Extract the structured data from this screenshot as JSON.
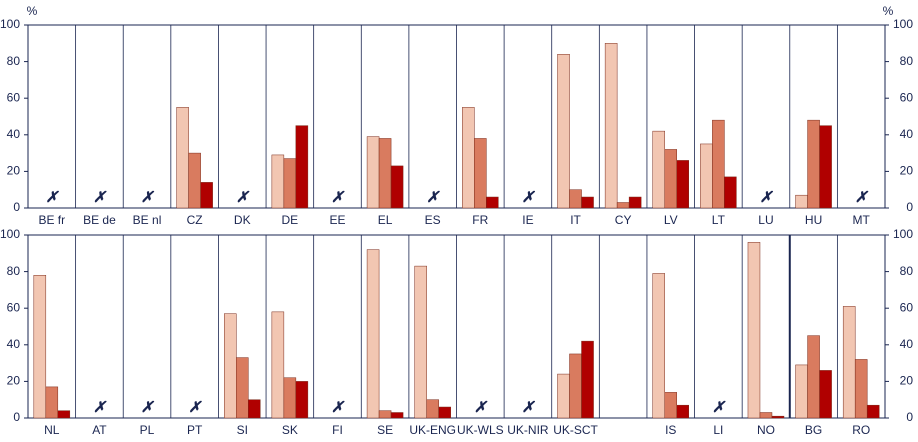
{
  "chart_data": [
    {
      "type": "bar",
      "y_label": "%",
      "missing_marker": "✗",
      "categories": [
        "BE fr",
        "BE de",
        "BE nl",
        "CZ",
        "DK",
        "DE",
        "EE",
        "EL",
        "ES",
        "FR",
        "IE",
        "IT",
        "CY",
        "LV",
        "LT",
        "LU",
        "HU",
        "MT"
      ],
      "series": [
        {
          "color": "#f2c6b2",
          "values": [
            null,
            null,
            null,
            55,
            null,
            29,
            null,
            39,
            null,
            55,
            null,
            84,
            90,
            42,
            35,
            null,
            7,
            null
          ]
        },
        {
          "color": "#d97b5f",
          "values": [
            null,
            null,
            null,
            30,
            null,
            27,
            null,
            38,
            null,
            38,
            null,
            10,
            3,
            32,
            48,
            null,
            48,
            null
          ]
        },
        {
          "color": "#b00000",
          "values": [
            null,
            null,
            null,
            14,
            null,
            45,
            null,
            23,
            null,
            6,
            null,
            6,
            6,
            26,
            17,
            null,
            45,
            null
          ]
        }
      ],
      "ylim": [
        0,
        100
      ],
      "yticks": [
        0,
        20,
        40,
        60,
        80,
        100
      ]
    },
    {
      "type": "bar",
      "missing_marker": "✗",
      "categories": [
        "NL",
        "AT",
        "PL",
        "PT",
        "SI",
        "SK",
        "FI",
        "SE",
        "UK-ENG",
        "UK-WLS",
        "UK-NIR",
        "UK-SCT",
        null,
        "IS",
        "LI",
        "NO",
        "BG",
        "RO"
      ],
      "series": [
        {
          "color": "#f2c6b2",
          "values": [
            78,
            null,
            null,
            null,
            57,
            58,
            null,
            92,
            83,
            null,
            null,
            24,
            null,
            79,
            null,
            96,
            29,
            61
          ]
        },
        {
          "color": "#d97b5f",
          "values": [
            17,
            null,
            null,
            null,
            33,
            22,
            null,
            4,
            10,
            null,
            null,
            35,
            null,
            14,
            null,
            3,
            45,
            32
          ]
        },
        {
          "color": "#b00000",
          "values": [
            4,
            null,
            null,
            null,
            10,
            20,
            null,
            3,
            6,
            null,
            null,
            42,
            null,
            7,
            null,
            1,
            26,
            7
          ]
        }
      ],
      "ylim": [
        0,
        100
      ],
      "yticks": [
        0,
        20,
        40,
        60,
        80,
        100
      ]
    }
  ]
}
